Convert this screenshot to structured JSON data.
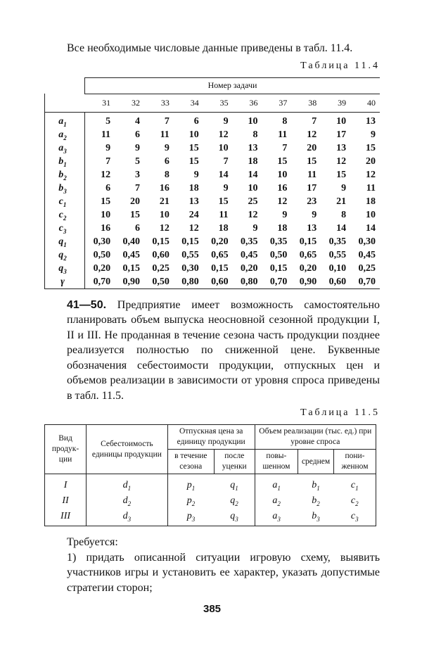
{
  "intro": "Все необходимые числовые данные приведены в табл. 11.4.",
  "table1": {
    "caption": "Таблица 11.4",
    "group_header": "Номер задачи",
    "columns": [
      "31",
      "32",
      "33",
      "34",
      "35",
      "36",
      "37",
      "38",
      "39",
      "40"
    ],
    "rows": [
      {
        "var": "a",
        "sub": "1",
        "values": [
          "5",
          "4",
          "7",
          "6",
          "9",
          "10",
          "8",
          "7",
          "10",
          "13"
        ]
      },
      {
        "var": "a",
        "sub": "2",
        "values": [
          "11",
          "6",
          "11",
          "10",
          "12",
          "8",
          "11",
          "12",
          "17",
          "9"
        ]
      },
      {
        "var": "a",
        "sub": "3",
        "values": [
          "9",
          "9",
          "9",
          "15",
          "10",
          "13",
          "7",
          "20",
          "13",
          "15"
        ]
      },
      {
        "var": "b",
        "sub": "1",
        "values": [
          "7",
          "5",
          "6",
          "15",
          "7",
          "18",
          "15",
          "15",
          "12",
          "20"
        ]
      },
      {
        "var": "b",
        "sub": "2",
        "values": [
          "12",
          "3",
          "8",
          "9",
          "14",
          "14",
          "10",
          "11",
          "15",
          "12"
        ]
      },
      {
        "var": "b",
        "sub": "3",
        "values": [
          "6",
          "7",
          "16",
          "18",
          "9",
          "10",
          "16",
          "17",
          "9",
          "11"
        ]
      },
      {
        "var": "c",
        "sub": "1",
        "values": [
          "15",
          "20",
          "21",
          "13",
          "15",
          "25",
          "12",
          "23",
          "21",
          "18"
        ]
      },
      {
        "var": "c",
        "sub": "2",
        "values": [
          "10",
          "15",
          "10",
          "24",
          "11",
          "12",
          "9",
          "9",
          "8",
          "10"
        ]
      },
      {
        "var": "c",
        "sub": "3",
        "values": [
          "16",
          "6",
          "12",
          "12",
          "18",
          "9",
          "18",
          "13",
          "14",
          "14"
        ]
      },
      {
        "var": "q",
        "sub": "1",
        "values": [
          "0,30",
          "0,40",
          "0,15",
          "0,15",
          "0,20",
          "0,35",
          "0,35",
          "0,15",
          "0,35",
          "0,30"
        ]
      },
      {
        "var": "q",
        "sub": "2",
        "values": [
          "0,50",
          "0,45",
          "0,60",
          "0,55",
          "0,65",
          "0,45",
          "0,50",
          "0,65",
          "0,55",
          "0,45"
        ]
      },
      {
        "var": "q",
        "sub": "3",
        "values": [
          "0,20",
          "0,15",
          "0,25",
          "0,30",
          "0,15",
          "0,20",
          "0,15",
          "0,20",
          "0,10",
          "0,25"
        ]
      },
      {
        "var": "γ",
        "sub": "",
        "values": [
          "0,70",
          "0,90",
          "0,50",
          "0,80",
          "0,60",
          "0,80",
          "0,70",
          "0,90",
          "0,60",
          "0,70"
        ]
      }
    ]
  },
  "task": {
    "number": "41—50.",
    "text": " Предприятие имеет возможность самостоятельно планировать объем выпуска неосновной сезонной продукции I, II и III. Не проданная в течение сезона часть продукции позднее реализуется полностью по сниженной цене. Буквенные обозначения себестоимости продукции, отпускных цен и объемов реализации в зависимости от уровня спроса приведены в табл. 11.5."
  },
  "table2": {
    "caption": "Таблица 11.5",
    "headers": {
      "kind": "Вид продук-ции",
      "cost": "Себестоимость единицы продукции",
      "price": "Отпускная цена за единицу продукции",
      "price_season": "в течение сезона",
      "price_after": "после уценки",
      "volume": "Объем реализации (тыс. ед.) при уровне спроса",
      "vol_high": "повы-шенном",
      "vol_mid": "среднем",
      "vol_low": "пони-женном"
    },
    "rows": [
      {
        "kind": "I",
        "cells": [
          [
            "d",
            "1"
          ],
          [
            "p",
            "1"
          ],
          [
            "q",
            "1"
          ],
          [
            "a",
            "1"
          ],
          [
            "b",
            "1"
          ],
          [
            "c",
            "1"
          ]
        ]
      },
      {
        "kind": "II",
        "cells": [
          [
            "d",
            "2"
          ],
          [
            "p",
            "2"
          ],
          [
            "q",
            "2"
          ],
          [
            "a",
            "2"
          ],
          [
            "b",
            "2"
          ],
          [
            "c",
            "2"
          ]
        ]
      },
      {
        "kind": "III",
        "cells": [
          [
            "d",
            "3"
          ],
          [
            "p",
            "3"
          ],
          [
            "q",
            "3"
          ],
          [
            "a",
            "3"
          ],
          [
            "b",
            "3"
          ],
          [
            "c",
            "3"
          ]
        ]
      }
    ]
  },
  "requirements": {
    "title": "Требуется:",
    "item1": "1) придать описанной ситуации игровую схему, выявить участников игры и установить ее характер, указать допустимые стратегии сторон;"
  },
  "page_number": "385"
}
